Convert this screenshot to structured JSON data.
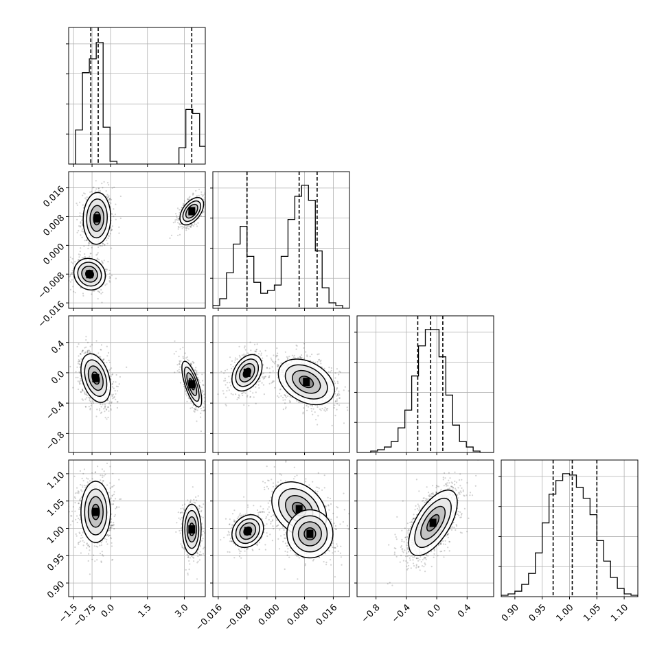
{
  "chart_data": {
    "type": "corner",
    "description_params": 4,
    "grid": true,
    "params": [
      {
        "range": [
          -1.7,
          3.85
        ],
        "ticks": [
          -1.5,
          -0.75,
          0.0,
          1.5,
          3.0
        ],
        "tick_labels": [
          "−1.5",
          "−0.75",
          "0.0",
          "1.5",
          "3.0"
        ],
        "quantiles": [
          -0.8,
          -0.5,
          3.3
        ],
        "hist_step": 0.28,
        "hist": [
          [
            -1.7,
            0
          ],
          [
            -1.42,
            0.25
          ],
          [
            -1.14,
            0.67
          ],
          [
            -0.86,
            0.77
          ],
          [
            -0.58,
            0.89
          ],
          [
            -0.3,
            0.27
          ],
          [
            -0.02,
            0.02
          ],
          [
            0.26,
            0
          ],
          [
            0.54,
            0
          ],
          [
            0.82,
            0
          ],
          [
            1.1,
            0
          ],
          [
            1.38,
            0
          ],
          [
            1.66,
            0
          ],
          [
            1.94,
            0
          ],
          [
            2.22,
            0
          ],
          [
            2.5,
            0
          ],
          [
            2.78,
            0.12
          ],
          [
            3.06,
            0.4
          ],
          [
            3.34,
            0.37
          ],
          [
            3.62,
            0.13
          ]
        ],
        "hist_max": 0.9
      },
      {
        "range": [
          -0.0175,
          0.0205
        ],
        "ticks": [
          -0.016,
          -0.008,
          0.0,
          0.008,
          0.016
        ],
        "tick_labels": [
          "−0.016",
          "−0.008",
          "0.000",
          "0.008",
          "0.016"
        ],
        "quantiles": [
          -0.008,
          0.0065,
          0.0115
        ],
        "hist_step": 0.0019,
        "hist": [
          [
            -0.0175,
            0.02
          ],
          [
            -0.0156,
            0.07
          ],
          [
            -0.0137,
            0.26
          ],
          [
            -0.0118,
            0.47
          ],
          [
            -0.0099,
            0.6
          ],
          [
            -0.008,
            0.38
          ],
          [
            -0.0061,
            0.19
          ],
          [
            -0.0042,
            0.11
          ],
          [
            -0.0023,
            0.13
          ],
          [
            -0.0004,
            0.17
          ],
          [
            0.0015,
            0.38
          ],
          [
            0.0034,
            0.65
          ],
          [
            0.0053,
            0.82
          ],
          [
            0.0072,
            0.9
          ],
          [
            0.0091,
            0.79
          ],
          [
            0.011,
            0.42
          ],
          [
            0.0129,
            0.15
          ],
          [
            0.0148,
            0.04
          ],
          [
            0.0167,
            0.02
          ],
          [
            0.0186,
            0
          ]
        ],
        "hist_max": 0.9
      },
      {
        "range": [
          -1.05,
          0.75
        ],
        "ticks": [
          -0.8,
          -0.4,
          0.0,
          0.4
        ],
        "tick_labels": [
          "−0.8",
          "−0.4",
          "0.0",
          "0.4"
        ],
        "quantiles": [
          -0.25,
          -0.08,
          0.08
        ],
        "hist_step": 0.09,
        "hist": [
          [
            -1.05,
            0
          ],
          [
            -0.96,
            0
          ],
          [
            -0.87,
            0.01
          ],
          [
            -0.78,
            0.02
          ],
          [
            -0.69,
            0.04
          ],
          [
            -0.6,
            0.08
          ],
          [
            -0.51,
            0.18
          ],
          [
            -0.42,
            0.31
          ],
          [
            -0.33,
            0.56
          ],
          [
            -0.24,
            0.78
          ],
          [
            -0.15,
            0.9
          ],
          [
            -0.06,
            0.9
          ],
          [
            0.03,
            0.7
          ],
          [
            0.12,
            0.42
          ],
          [
            0.21,
            0.2
          ],
          [
            0.3,
            0.08
          ],
          [
            0.39,
            0.04
          ],
          [
            0.48,
            0.01
          ],
          [
            0.57,
            0
          ],
          [
            0.66,
            0
          ]
        ],
        "hist_max": 0.9
      },
      {
        "range": [
          0.875,
          1.125
        ],
        "ticks": [
          0.9,
          0.95,
          1.0,
          1.05,
          1.1
        ],
        "tick_labels": [
          "0.90",
          "0.95",
          "1.00",
          "1.05",
          "1.10"
        ],
        "quantiles": [
          0.97,
          1.005,
          1.05
        ],
        "hist_step": 0.0125,
        "hist": [
          [
            0.875,
            0.01
          ],
          [
            0.8875,
            0.02
          ],
          [
            0.9,
            0.04
          ],
          [
            0.9125,
            0.09
          ],
          [
            0.925,
            0.17
          ],
          [
            0.9375,
            0.32
          ],
          [
            0.95,
            0.54
          ],
          [
            0.9625,
            0.75
          ],
          [
            0.975,
            0.85
          ],
          [
            0.9875,
            0.9
          ],
          [
            1.0,
            0.89
          ],
          [
            1.0125,
            0.8
          ],
          [
            1.025,
            0.72
          ],
          [
            1.0375,
            0.6
          ],
          [
            1.05,
            0.41
          ],
          [
            1.0625,
            0.26
          ],
          [
            1.075,
            0.14
          ],
          [
            1.0875,
            0.06
          ],
          [
            1.1,
            0.02
          ],
          [
            1.1125,
            0.01
          ]
        ],
        "hist_max": 0.9
      }
    ],
    "pairs": [
      {
        "row": 1,
        "col": 0,
        "blobs": [
          {
            "cx": -0.55,
            "cy": 0.0075,
            "sx": 0.28,
            "sy": 0.0036,
            "rho": 0.05,
            "pts": 600
          },
          {
            "cx": -0.85,
            "cy": -0.008,
            "sx": 0.32,
            "sy": 0.0022,
            "rho": -0.1,
            "pts": 420
          },
          {
            "cx": 3.3,
            "cy": 0.0095,
            "sx": 0.24,
            "sy": 0.0019,
            "rho": 0.5,
            "pts": 520
          }
        ]
      },
      {
        "row": 2,
        "col": 0,
        "blobs": [
          {
            "cx": -0.6,
            "cy": -0.07,
            "sx": 0.3,
            "sy": 0.16,
            "rho": -0.35,
            "pts": 900
          },
          {
            "cx": 3.3,
            "cy": -0.15,
            "sx": 0.2,
            "sy": 0.15,
            "rho": -0.7,
            "pts": 520
          }
        ]
      },
      {
        "row": 2,
        "col": 1,
        "blobs": [
          {
            "cx": -0.008,
            "cy": 0.0,
            "sx": 0.0021,
            "sy": 0.12,
            "rho": 0.35,
            "pts": 500
          },
          {
            "cx": 0.0085,
            "cy": -0.12,
            "sx": 0.0039,
            "sy": 0.15,
            "rho": -0.35,
            "pts": 900
          }
        ]
      },
      {
        "row": 3,
        "col": 0,
        "blobs": [
          {
            "cx": -0.6,
            "cy": 1.03,
            "sx": 0.3,
            "sy": 0.028,
            "rho": 0.0,
            "pts": 900
          },
          {
            "cx": 3.3,
            "cy": 0.998,
            "sx": 0.19,
            "sy": 0.023,
            "rho": 0.0,
            "pts": 520
          }
        ]
      },
      {
        "row": 3,
        "col": 1,
        "blobs": [
          {
            "cx": -0.0078,
            "cy": 0.995,
            "sx": 0.0022,
            "sy": 0.015,
            "rho": 0.2,
            "pts": 500
          },
          {
            "cx": 0.0065,
            "cy": 1.035,
            "sx": 0.0038,
            "sy": 0.025,
            "rho": -0.3,
            "pts": 500
          },
          {
            "cx": 0.0095,
            "cy": 0.99,
            "sx": 0.0032,
            "sy": 0.022,
            "rho": 0.0,
            "pts": 420
          }
        ]
      },
      {
        "row": 3,
        "col": 2,
        "blobs": [
          {
            "cx": -0.05,
            "cy": 1.01,
            "sx": 0.16,
            "sy": 0.03,
            "rho": 0.62,
            "pts": 1300
          }
        ]
      }
    ]
  }
}
